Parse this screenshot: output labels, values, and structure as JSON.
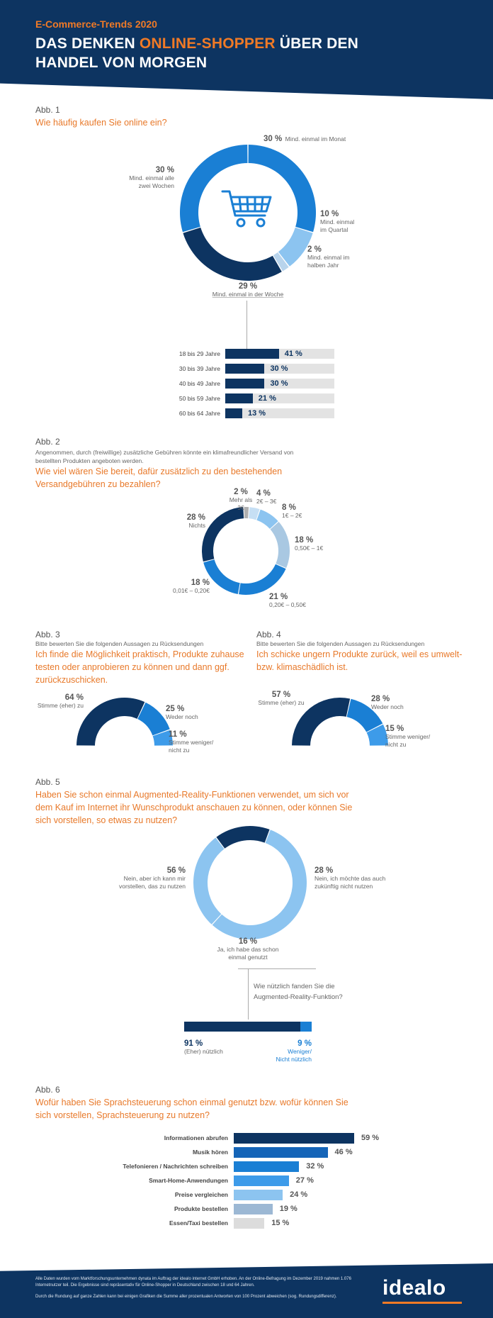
{
  "header": {
    "kicker": "E-Commerce-Trends 2020",
    "title_part1": "DAS DENKEN ",
    "title_highlight": "ONLINE-SHOPPER",
    "title_part2": " ÜBER DEN",
    "title_line2": "HANDEL VON MORGEN"
  },
  "colors": {
    "navy": "#0d3461",
    "orange": "#f07a26",
    "blue": "#1a7fd4",
    "mid_blue": "#3d9be9",
    "light_blue": "#8cc4f0",
    "pale_blue": "#b8d4ec",
    "grey": "#e3e3e3"
  },
  "section1": {
    "abb": "Abb. 1",
    "question": "Wie häufig kaufen Sie online ein?",
    "icon": "shopping-cart-icon",
    "labels": {
      "monthly_pct": "30 %",
      "monthly_text": "Mind. einmal im Monat",
      "twoweeks_pct": "30 %",
      "twoweeks_text1": "Mind. einmal alle",
      "twoweeks_text2": "zwei Wochen",
      "quarter_pct": "10 %",
      "quarter_text1": "Mind. einmal",
      "quarter_text2": "im Quartal",
      "halfyear_pct": "2 %",
      "halfyear_text1": "Mind. einmal im",
      "halfyear_text2": "halben Jahr",
      "weekly_pct": "29 %",
      "weekly_text": "Mind. einmal in der Woche"
    },
    "age_rows": [
      {
        "label": "18 bis 29 Jahre",
        "value_text": "41 %"
      },
      {
        "label": "30 bis 39 Jahre",
        "value_text": "30 %"
      },
      {
        "label": "40 bis 49 Jahre",
        "value_text": "30 %"
      },
      {
        "label": "50 bis 59 Jahre",
        "value_text": "21 %"
      },
      {
        "label": "60 bis 64 Jahre",
        "value_text": "13 %"
      }
    ]
  },
  "section2": {
    "abb": "Abb. 2",
    "intro1": "Angenommen, durch (freiwillige) zusätzliche Gebühren könnte ein klimafreundlicher Versand von",
    "intro2": "bestellten Produkten angeboten werden.",
    "question1": "Wie viel wären Sie bereit, dafür zusätzlich zu den bestehenden",
    "question2": "Versandgebühren zu bezahlen?",
    "labels": {
      "a_pct": "2 %",
      "a_text": "Mehr als 3€",
      "b_pct": "4 %",
      "b_text": "2€ – 3€",
      "c_pct": "8 %",
      "c_text": "1€ – 2€",
      "d_pct": "18 %",
      "d_text": "0,50€ – 1€",
      "e_pct": "21 %",
      "e_text": "0,20€ – 0,50€",
      "f_pct": "18 %",
      "f_text": "0,01€ – 0,20€",
      "g_pct": "28 %",
      "g_text": "Nichts"
    }
  },
  "section3": {
    "abb": "Abb. 3",
    "intro": "Bitte bewerten Sie die folgenden Aussagen zu Rücksendungen",
    "q1": "Ich finde die Möglichkeit praktisch, Produkte zuhause",
    "q2": "testen oder anprobieren zu können und dann ggf.",
    "q3": "zurückzuschicken.",
    "a_pct": "64 %",
    "a_text": "Stimme (eher) zu",
    "b_pct": "25 %",
    "b_text": "Weder noch",
    "c_pct": "11 %",
    "c_text1": "Stimme weniger/",
    "c_text2": "nicht zu"
  },
  "section4": {
    "abb": "Abb. 4",
    "intro": "Bitte bewerten Sie die folgenden Aussagen zu Rücksendungen",
    "q1": "Ich schicke ungern Produkte zurück, weil es umwelt-",
    "q2": "bzw. klimaschädlich ist.",
    "a_pct": "57 %",
    "a_text": "Stimme (eher) zu",
    "b_pct": "28 %",
    "b_text": "Weder noch",
    "c_pct": "15 %",
    "c_text1": "Stimme weniger/",
    "c_text2": "nicht zu"
  },
  "section5": {
    "abb": "Abb. 5",
    "q1": "Haben Sie schon einmal Augmented-Reality-Funktionen verwendet, um sich vor",
    "q2": "dem Kauf im Internet ihr Wunschprodukt anschauen zu können, oder können Sie",
    "q3": "sich vorstellen, so etwas zu nutzen?",
    "a_pct": "56 %",
    "a_text1": "Nein, aber ich kann mir",
    "a_text2": "vorstellen, das zu nutzen",
    "b_pct": "28 %",
    "b_text1": "Nein, ich möchte das auch",
    "b_text2": "zukünftig nicht nutzen",
    "c_pct": "16 %",
    "c_text1": "Ja, ich habe das schon",
    "c_text2": "einmal genutzt",
    "sub_q1": "Wie nützlich fanden Sie die",
    "sub_q2": "Augmented-Reality-Funktion?",
    "useful_pct": "91 %",
    "useful_text": "(Eher) nützlich",
    "notuseful_pct": "9 %",
    "notuseful_text1": "Weniger/",
    "notuseful_text2": "Nicht nützlich"
  },
  "section6": {
    "abb": "Abb. 6",
    "q1": "Wofür haben Sie Sprachsteuerung schon einmal genutzt bzw. wofür können Sie",
    "q2": "sich vorstellen, Sprachsteuerung zu nutzen?",
    "rows": [
      {
        "label": "Informationen abrufen",
        "value_text": "59 %"
      },
      {
        "label": "Musik hören",
        "value_text": "46 %"
      },
      {
        "label": "Telefonieren / Nachrichten schreiben",
        "value_text": "32 %"
      },
      {
        "label": "Smart-Home-Anwendungen",
        "value_text": "27 %"
      },
      {
        "label": "Preise vergleichen",
        "value_text": "24 %"
      },
      {
        "label": "Produkte bestellen",
        "value_text": "19 %"
      },
      {
        "label": "Essen/Taxi bestellen",
        "value_text": "15 %"
      }
    ]
  },
  "footer": {
    "note1": "Alle Daten wurden vom Marktforschungsunternehmen dynata im Auftrag der idealo internet GmbH erhoben. An der Online-Befragung im Dezember 2019 nahmen 1.076",
    "note2": "Internetnutzer teil. Die Ergebnisse sind repräsentativ für Online-Shopper in Deutschland zwischen 18 und 64 Jahren.",
    "note3": "Durch die Rundung auf ganze Zahlen kann bei einigen Grafiken die Summe aller prozentualen Antworten von 100 Prozent abweichen (sog. Rundungsdifferenz).",
    "logo": "idealo"
  },
  "chart_data": [
    {
      "type": "pie",
      "title": "Wie häufig kaufen Sie online ein?",
      "categories": [
        "Mind. einmal im Monat",
        "Mind. einmal im Quartal",
        "Mind. einmal im halben Jahr",
        "Mind. einmal in der Woche",
        "Mind. einmal alle zwei Wochen"
      ],
      "values": [
        30,
        10,
        2,
        29,
        30
      ],
      "colors": [
        "#1a7fd4",
        "#8cc4f0",
        "#b8d4ec",
        "#0d3461",
        "#1a7fd4"
      ]
    },
    {
      "type": "bar",
      "title": "",
      "categories": [
        "18 bis 29 Jahre",
        "30 bis 39 Jahre",
        "40 bis 49 Jahre",
        "50 bis 59 Jahre",
        "60 bis 64 Jahre"
      ],
      "values": [
        41,
        30,
        30,
        21,
        13
      ],
      "xlim": [
        0,
        100
      ]
    },
    {
      "type": "pie",
      "title": "Wie viel wären Sie bereit, dafür zusätzlich zu den bestehenden Versandgebühren zu bezahlen?",
      "categories": [
        "Mehr als 3€",
        "2€ – 3€",
        "1€ – 2€",
        "0,50€ – 1€",
        "0,20€ – 0,50€",
        "0,01€ – 0,20€",
        "Nichts"
      ],
      "values": [
        2,
        4,
        8,
        18,
        21,
        18,
        28
      ],
      "colors": [
        "#b0b0b0",
        "#c6dff4",
        "#8cc4f0",
        "#a9c8e2",
        "#1a7fd4",
        "#1a7fd4",
        "#0d3461"
      ]
    },
    {
      "type": "pie",
      "title": "Ich finde die Möglichkeit praktisch, Produkte zuhause testen oder anprobieren zu können und dann ggf. zurückzuschicken.",
      "categories": [
        "Stimme (eher) zu",
        "Weder noch",
        "Stimme weniger/ nicht zu"
      ],
      "values": [
        64,
        25,
        11
      ],
      "colors": [
        "#0d3461",
        "#1a7fd4",
        "#3d9be9"
      ]
    },
    {
      "type": "pie",
      "title": "Ich schicke ungern Produkte zurück, weil es umwelt- bzw. klimaschädlich ist.",
      "categories": [
        "Stimme (eher) zu",
        "Weder noch",
        "Stimme weniger/ nicht zu"
      ],
      "values": [
        57,
        28,
        15
      ],
      "colors": [
        "#0d3461",
        "#1a7fd4",
        "#3d9be9"
      ]
    },
    {
      "type": "pie",
      "title": "Haben Sie schon einmal Augmented-Reality-Funktionen verwendet, um sich vor dem Kauf im Internet ihr Wunschprodukt anschauen zu können, oder können Sie sich vorstellen, so etwas zu nutzen?",
      "categories": [
        "Nein, aber ich kann mir vorstellen, das zu nutzen",
        "Nein, ich möchte das auch zukünftig nicht nutzen",
        "Ja, ich habe das schon einmal genutzt"
      ],
      "values": [
        56,
        28,
        16
      ],
      "colors": [
        "#8cc4f0",
        "#8cc4f0",
        "#0d3461"
      ]
    },
    {
      "type": "bar",
      "title": "Wie nützlich fanden Sie die Augmented-Reality-Funktion?",
      "categories": [
        "(Eher) nützlich",
        "Weniger/ Nicht nützlich"
      ],
      "values": [
        91,
        9
      ]
    },
    {
      "type": "bar",
      "title": "Wofür haben Sie Sprachsteuerung schon einmal genutzt bzw. wofür können Sie sich vorstellen, Sprachsteuerung zu nutzen?",
      "categories": [
        "Informationen abrufen",
        "Musik hören",
        "Telefonieren / Nachrichten schreiben",
        "Smart-Home-Anwendungen",
        "Preise vergleichen",
        "Produkte bestellen",
        "Essen/Taxi bestellen"
      ],
      "values": [
        59,
        46,
        32,
        27,
        24,
        19,
        15
      ],
      "colors": [
        "#0d3461",
        "#1565b8",
        "#1a7fd4",
        "#3d9be9",
        "#8cc4f0",
        "#9cb8d4",
        "#dcdcdc"
      ]
    }
  ]
}
